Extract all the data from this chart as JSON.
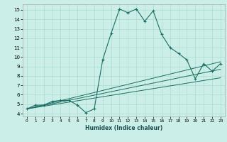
{
  "title": "",
  "xlabel": "Humidex (Indice chaleur)",
  "bg_color": "#cceee8",
  "line_color": "#1a6e64",
  "grid_color": "#aaddcc",
  "xlim": [
    -0.5,
    23.5
  ],
  "ylim": [
    3.7,
    15.6
  ],
  "xticks": [
    0,
    1,
    2,
    3,
    4,
    5,
    6,
    7,
    8,
    9,
    10,
    11,
    12,
    13,
    14,
    15,
    16,
    17,
    18,
    19,
    20,
    21,
    22,
    23
  ],
  "yticks": [
    4,
    5,
    6,
    7,
    8,
    9,
    10,
    11,
    12,
    13,
    14,
    15
  ],
  "curve1_x": [
    0,
    1,
    2,
    3,
    4,
    5,
    6,
    7,
    8,
    9,
    10,
    11,
    12,
    13,
    14,
    15,
    16,
    17,
    18,
    19,
    20,
    21,
    22,
    23
  ],
  "curve1_y": [
    4.5,
    4.9,
    4.9,
    5.3,
    5.4,
    5.4,
    4.9,
    4.1,
    4.5,
    9.7,
    12.5,
    15.1,
    14.7,
    15.1,
    13.8,
    14.9,
    12.4,
    11.0,
    10.4,
    9.7,
    7.7,
    9.3,
    8.5,
    9.3
  ],
  "diag_lines": [
    {
      "x": [
        0,
        23
      ],
      "y": [
        4.5,
        9.5
      ]
    },
    {
      "x": [
        0,
        23
      ],
      "y": [
        4.5,
        8.7
      ]
    },
    {
      "x": [
        0,
        23
      ],
      "y": [
        4.5,
        7.8
      ]
    }
  ]
}
